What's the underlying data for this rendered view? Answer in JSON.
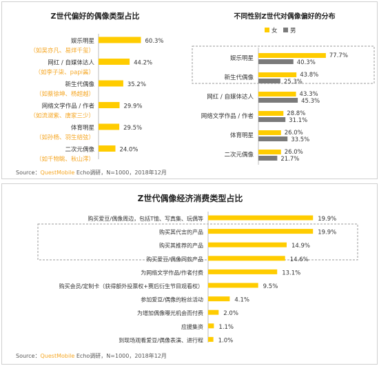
{
  "source": {
    "prefix": "Source：",
    "brand": "QuestMobile",
    "suffix": " Echo调研，N=1000，2018年12月"
  },
  "colors": {
    "bar": "#ffcc00",
    "male": "#7a7a7a",
    "accent": "#f5a623",
    "dash": "#999999"
  },
  "chart_data": [
    {
      "type": "bar",
      "orientation": "horizontal",
      "title": "Z世代偏好的偶像类型占比",
      "categories": [
        "娱乐明星",
        "网红 / 自媒体达人",
        "新生代偶像",
        "网络文学作品 / 作者",
        "体育明星",
        "二次元偶像"
      ],
      "examples": [
        "（如吴亦凡、易烊千玺）",
        "（如李子柒、papi酱）",
        "（如蔡徐坤、杨超越）",
        "（如流潋紫、唐家三少）",
        "（如孙杨、羽生结弦）",
        "（如千物眺、秋山澪）"
      ],
      "values": [
        60.3,
        44.2,
        35.2,
        29.9,
        29.5,
        24.0
      ],
      "labels": [
        "60.3%",
        "44.2%",
        "35.2%",
        "29.9%",
        "29.5%",
        "24.0%"
      ]
    },
    {
      "type": "bar",
      "orientation": "horizontal",
      "title": "不同性别Z世代对偶像偏好的分布",
      "legend": [
        "女",
        "男"
      ],
      "legend_position": "top-right",
      "categories": [
        "娱乐明星",
        "新生代偶像",
        "网红 / 自媒体达人",
        "网络文学作品 / 作者",
        "体育明星",
        "二次元偶像"
      ],
      "series": [
        {
          "name": "女",
          "values": [
            77.7,
            43.8,
            43.3,
            28.8,
            26.0,
            26.0
          ],
          "labels": [
            "77.7%",
            "43.8%",
            "43.3%",
            "28.8%",
            "26.0%",
            "26.0%"
          ]
        },
        {
          "name": "男",
          "values": [
            40.3,
            25.3,
            45.3,
            31.1,
            33.5,
            21.7
          ],
          "labels": [
            "40.3%",
            "25.3%",
            "45.3%",
            "31.1%",
            "33.5%",
            "21.7%"
          ]
        }
      ]
    },
    {
      "type": "bar",
      "orientation": "horizontal",
      "title": "Z世代偶像经济消费类型占比",
      "categories": [
        "购买爱豆/偶像周边，包括T恤、写真集、玩偶等",
        "购买其代言的产品",
        "购买其推荐的产品",
        "购买爱豆/偶像同款产品",
        "为网络文学作品/作者付费",
        "购买会员/定制卡（获得额外投票权+赛后衍生节目观看权）",
        "参加爱豆/偶像的粉丝活动",
        "为增加偶像曝光机会而付费",
        "应援集资",
        "到现场观看爱豆/偶像表演、进行程"
      ],
      "values": [
        19.9,
        19.9,
        14.9,
        14.6,
        13.1,
        9.5,
        4.1,
        2.0,
        1.1,
        1.0
      ],
      "labels": [
        "19.9%",
        "19.9%",
        "14.9%",
        "14.6%",
        "13.1%",
        "9.5%",
        "4.1%",
        "2.0%",
        "1.1%",
        "1.0%"
      ]
    }
  ]
}
